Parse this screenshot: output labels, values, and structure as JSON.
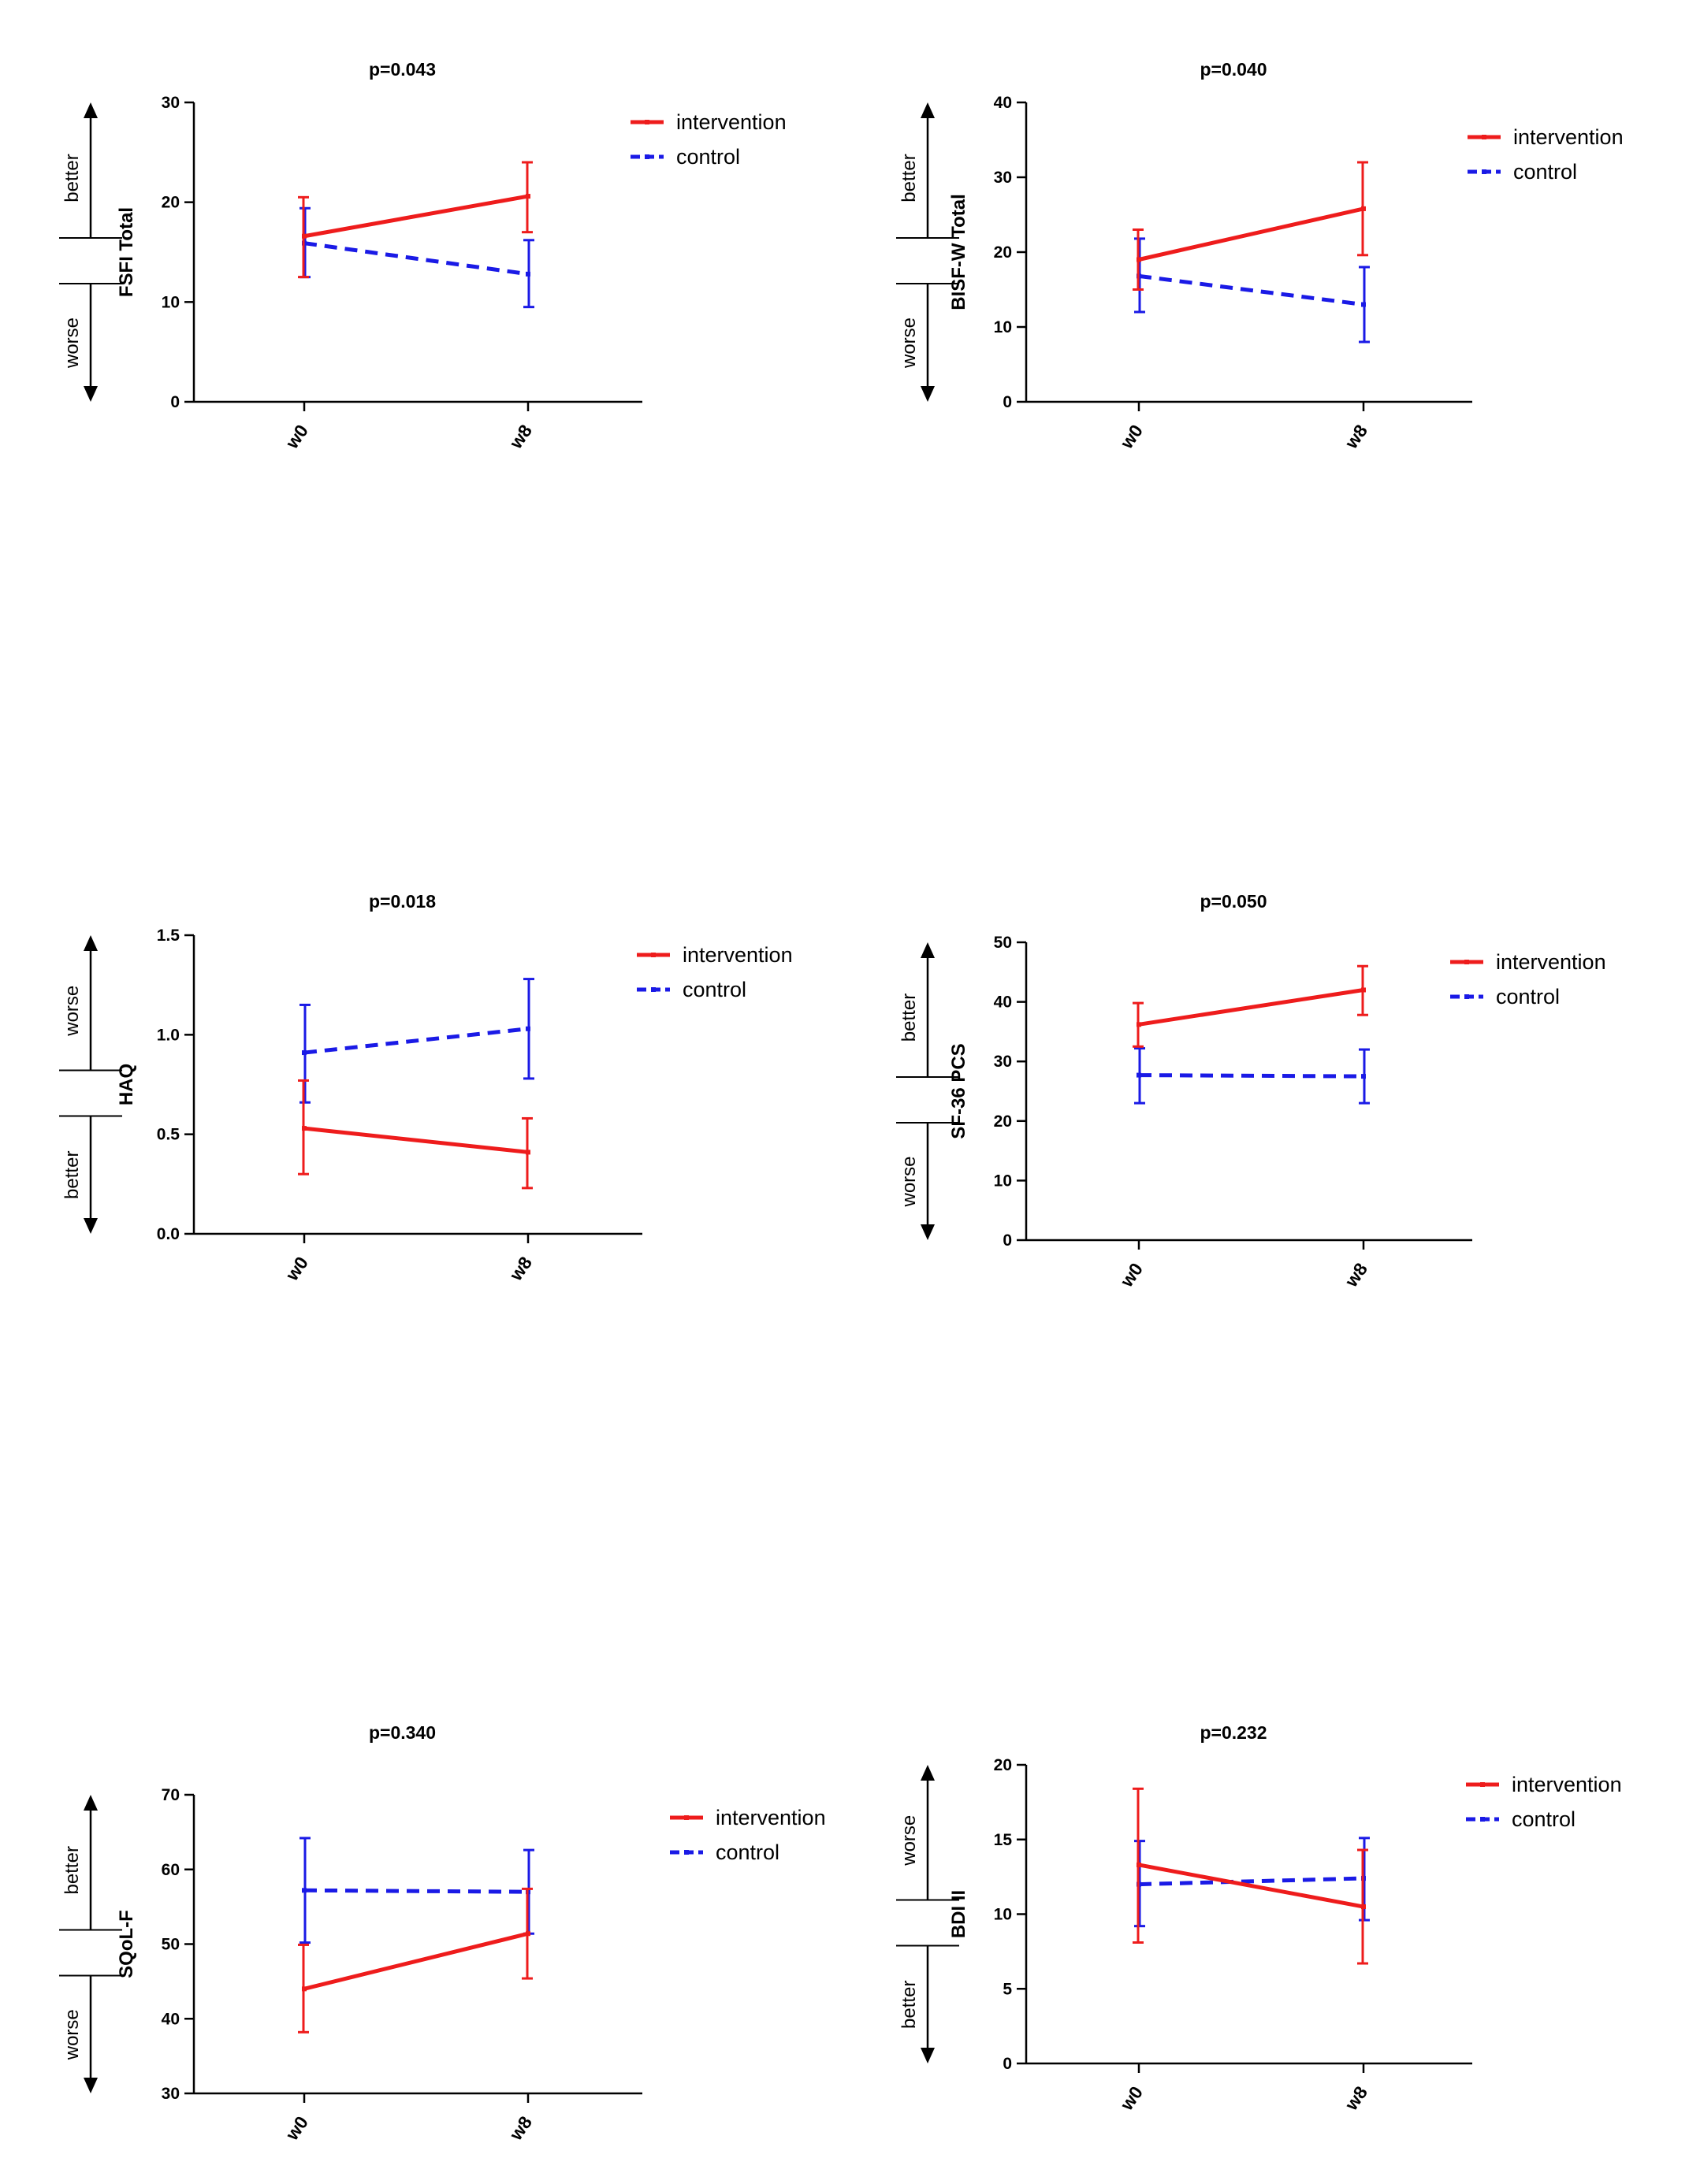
{
  "legend": {
    "intervention": "intervention",
    "control": "control"
  },
  "colors": {
    "intervention": "#ee1c1c",
    "control": "#1a1ae6",
    "axis": "#000000"
  },
  "chart_data": [
    {
      "type": "line",
      "title": "p=0.043",
      "ylabel": "FSFI Total",
      "ylim": [
        0,
        30
      ],
      "yticks": [
        0,
        10,
        20,
        30
      ],
      "categories": [
        "w0",
        "w8"
      ],
      "direction": {
        "upper": "better",
        "lower": "worse"
      },
      "series": [
        {
          "name": "intervention",
          "values": [
            16.6,
            20.6
          ],
          "err_low": [
            12.5,
            17.0
          ],
          "err_high": [
            20.5,
            24.0
          ]
        },
        {
          "name": "control",
          "values": [
            15.9,
            12.8
          ],
          "err_low": [
            12.5,
            9.5
          ],
          "err_high": [
            19.4,
            16.2
          ]
        }
      ]
    },
    {
      "type": "line",
      "title": "p=0.040",
      "ylabel": "BISF-W Total",
      "ylim": [
        0,
        40
      ],
      "yticks": [
        0,
        10,
        20,
        30,
        40
      ],
      "categories": [
        "w0",
        "w8"
      ],
      "direction": {
        "upper": "better",
        "lower": "worse"
      },
      "series": [
        {
          "name": "intervention",
          "values": [
            19.0,
            25.8
          ],
          "err_low": [
            15.0,
            19.6
          ],
          "err_high": [
            23.0,
            32.0
          ]
        },
        {
          "name": "control",
          "values": [
            16.8,
            13.0
          ],
          "err_low": [
            12.0,
            8.0
          ],
          "err_high": [
            21.8,
            18.0
          ]
        }
      ]
    },
    {
      "type": "line",
      "title": "p=0.018",
      "ylabel": "HAQ",
      "ylim": [
        0.0,
        1.5
      ],
      "yticks": [
        0.0,
        0.5,
        1.0,
        1.5
      ],
      "ytick_labels": [
        "0.0",
        "0.5",
        "1.0",
        "1.5"
      ],
      "categories": [
        "w0",
        "w8"
      ],
      "direction": {
        "upper": "worse",
        "lower": "better"
      },
      "series": [
        {
          "name": "intervention",
          "values": [
            0.53,
            0.41
          ],
          "err_low": [
            0.3,
            0.23
          ],
          "err_high": [
            0.77,
            0.58
          ]
        },
        {
          "name": "control",
          "values": [
            0.91,
            1.03
          ],
          "err_low": [
            0.66,
            0.78
          ],
          "err_high": [
            1.15,
            1.28
          ]
        }
      ]
    },
    {
      "type": "line",
      "title": "p=0.050",
      "ylabel": "SF-36 PCS",
      "ylim": [
        0,
        50
      ],
      "yticks": [
        0,
        10,
        20,
        30,
        40,
        50
      ],
      "categories": [
        "w0",
        "w8"
      ],
      "direction": {
        "upper": "better",
        "lower": "worse"
      },
      "series": [
        {
          "name": "intervention",
          "values": [
            36.2,
            42.0
          ],
          "err_low": [
            32.5,
            37.8
          ],
          "err_high": [
            39.8,
            46.0
          ]
        },
        {
          "name": "control",
          "values": [
            27.7,
            27.5
          ],
          "err_low": [
            23.0,
            23.0
          ],
          "err_high": [
            32.2,
            32.0
          ]
        }
      ]
    },
    {
      "type": "line",
      "title": "p=0.340",
      "ylabel": "SQoL-F",
      "ylim": [
        30,
        70
      ],
      "yticks": [
        30,
        40,
        50,
        60,
        70
      ],
      "categories": [
        "w0",
        "w8"
      ],
      "direction": {
        "upper": "better",
        "lower": "worse"
      },
      "series": [
        {
          "name": "intervention",
          "values": [
            44.0,
            51.4
          ],
          "err_low": [
            38.2,
            45.4
          ],
          "err_high": [
            49.9,
            57.4
          ]
        },
        {
          "name": "control",
          "values": [
            57.2,
            57.0
          ],
          "err_low": [
            50.2,
            51.4
          ],
          "err_high": [
            64.2,
            62.6
          ]
        }
      ]
    },
    {
      "type": "line",
      "title": "p=0.232",
      "ylabel": "BDI II",
      "ylim": [
        0,
        20
      ],
      "yticks": [
        0,
        5,
        10,
        15,
        20
      ],
      "categories": [
        "w0",
        "w8"
      ],
      "direction": {
        "upper": "worse",
        "lower": "better"
      },
      "series": [
        {
          "name": "intervention",
          "values": [
            13.3,
            10.5
          ],
          "err_low": [
            8.1,
            6.7
          ],
          "err_high": [
            18.4,
            14.3
          ]
        },
        {
          "name": "control",
          "values": [
            12.0,
            12.4
          ],
          "err_low": [
            9.2,
            9.6
          ],
          "err_high": [
            14.9,
            15.1
          ]
        }
      ]
    }
  ]
}
